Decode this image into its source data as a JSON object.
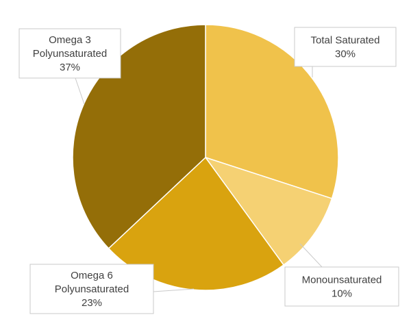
{
  "chart_data": {
    "type": "pie",
    "title": "",
    "slices": [
      {
        "label_lines": [
          "Total Saturated"
        ],
        "value": 30,
        "percent_label": "30%",
        "color": "#F0C24B"
      },
      {
        "label_lines": [
          "Monounsaturated"
        ],
        "value": 10,
        "percent_label": "10%",
        "color": "#F5D173"
      },
      {
        "label_lines": [
          "Omega 6",
          "Polyunsaturated"
        ],
        "value": 23,
        "percent_label": "23%",
        "color": "#D9A30F"
      },
      {
        "label_lines": [
          "Omega 3",
          "Polyunsaturated"
        ],
        "value": 37,
        "percent_label": "37%",
        "color": "#946E08"
      }
    ],
    "start_angle": "12 o'clock",
    "direction": "clockwise",
    "legend": "none",
    "data_labels": "callouts"
  }
}
